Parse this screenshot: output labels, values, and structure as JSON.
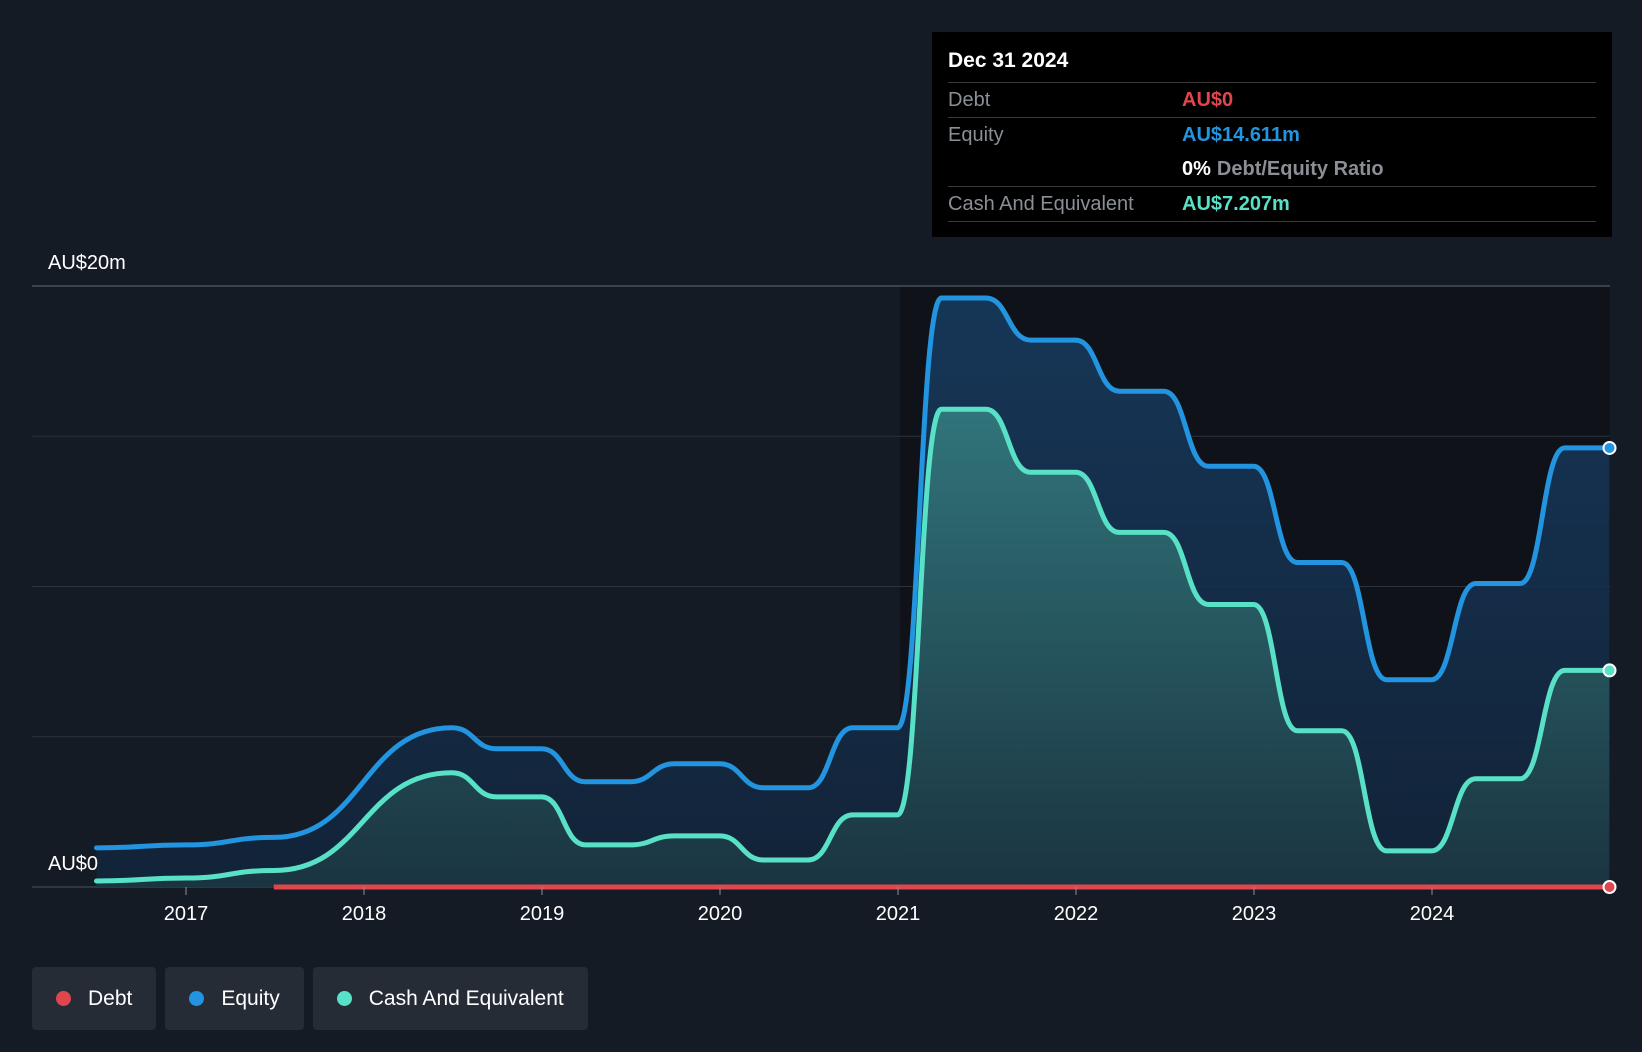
{
  "colors": {
    "debt": "#e0474c",
    "equity": "#2394df",
    "cash": "#58e1c6",
    "background": "#151b24"
  },
  "tooltip": {
    "date": "Dec 31 2024",
    "debt_label": "Debt",
    "debt_value": "AU$0",
    "equity_label": "Equity",
    "equity_value": "AU$14.611m",
    "ratio_value": "0%",
    "ratio_label": "Debt/Equity Ratio",
    "cash_label": "Cash And Equivalent",
    "cash_value": "AU$7.207m"
  },
  "legend": [
    {
      "name": "Debt",
      "icon": "debt-dot-icon"
    },
    {
      "name": "Equity",
      "icon": "equity-dot-icon"
    },
    {
      "name": "Cash And Equivalent",
      "icon": "cash-dot-icon"
    }
  ],
  "chart_data": {
    "type": "area",
    "title": "",
    "xlabel": "",
    "ylabel": "",
    "ylim": [
      0,
      20
    ],
    "y_unit": "AU$m",
    "y_tick_labels": {
      "top": "AU$20m",
      "bottom": "AU$0"
    },
    "x_tick_labels": [
      "2017",
      "2018",
      "2019",
      "2020",
      "2021",
      "2022",
      "2023",
      "2024"
    ],
    "grid": true,
    "legend_position": "bottom-left",
    "series": [
      {
        "name": "Equity",
        "color": "#2394df",
        "points": [
          [
            "2016-07-01",
            1.3
          ],
          [
            "2017-01-01",
            1.4
          ],
          [
            "2017-06-30",
            1.65
          ],
          [
            "2018-06-30",
            5.3
          ],
          [
            "2018-09-30",
            4.6
          ],
          [
            "2018-12-31",
            4.6
          ],
          [
            "2019-03-31",
            3.5
          ],
          [
            "2019-06-30",
            3.5
          ],
          [
            "2019-09-30",
            4.1
          ],
          [
            "2019-12-31",
            4.1
          ],
          [
            "2020-03-31",
            3.3
          ],
          [
            "2020-06-30",
            3.3
          ],
          [
            "2020-09-30",
            5.3
          ],
          [
            "2020-12-31",
            5.3
          ],
          [
            "2021-03-31",
            19.6
          ],
          [
            "2021-06-30",
            19.6
          ],
          [
            "2021-09-30",
            18.2
          ],
          [
            "2021-12-31",
            18.2
          ],
          [
            "2022-03-31",
            16.5
          ],
          [
            "2022-06-30",
            16.5
          ],
          [
            "2022-09-30",
            14.0
          ],
          [
            "2022-12-31",
            14.0
          ],
          [
            "2023-03-31",
            10.8
          ],
          [
            "2023-06-30",
            10.8
          ],
          [
            "2023-09-30",
            6.9
          ],
          [
            "2023-12-31",
            6.9
          ],
          [
            "2024-03-31",
            10.1
          ],
          [
            "2024-06-30",
            10.1
          ],
          [
            "2024-09-30",
            14.611
          ],
          [
            "2024-12-31",
            14.611
          ]
        ]
      },
      {
        "name": "Cash And Equivalent",
        "color": "#58e1c6",
        "points": [
          [
            "2016-07-01",
            0.2
          ],
          [
            "2017-01-01",
            0.3
          ],
          [
            "2017-06-30",
            0.55
          ],
          [
            "2018-06-30",
            3.8
          ],
          [
            "2018-09-30",
            3.0
          ],
          [
            "2018-12-31",
            3.0
          ],
          [
            "2019-03-31",
            1.4
          ],
          [
            "2019-06-30",
            1.4
          ],
          [
            "2019-09-30",
            1.7
          ],
          [
            "2019-12-31",
            1.7
          ],
          [
            "2020-03-31",
            0.9
          ],
          [
            "2020-06-30",
            0.9
          ],
          [
            "2020-09-30",
            2.4
          ],
          [
            "2020-12-31",
            2.4
          ],
          [
            "2021-03-31",
            15.9
          ],
          [
            "2021-06-30",
            15.9
          ],
          [
            "2021-09-30",
            13.8
          ],
          [
            "2021-12-31",
            13.8
          ],
          [
            "2022-03-31",
            11.8
          ],
          [
            "2022-06-30",
            11.8
          ],
          [
            "2022-09-30",
            9.4
          ],
          [
            "2022-12-31",
            9.4
          ],
          [
            "2023-03-31",
            5.2
          ],
          [
            "2023-06-30",
            5.2
          ],
          [
            "2023-09-30",
            1.2
          ],
          [
            "2023-12-31",
            1.2
          ],
          [
            "2024-03-31",
            3.6
          ],
          [
            "2024-06-30",
            3.6
          ],
          [
            "2024-09-30",
            7.207
          ],
          [
            "2024-12-31",
            7.207
          ]
        ]
      },
      {
        "name": "Debt",
        "color": "#e0474c",
        "points": [
          [
            "2017-06-30",
            0
          ],
          [
            "2024-12-31",
            0
          ]
        ]
      }
    ]
  }
}
